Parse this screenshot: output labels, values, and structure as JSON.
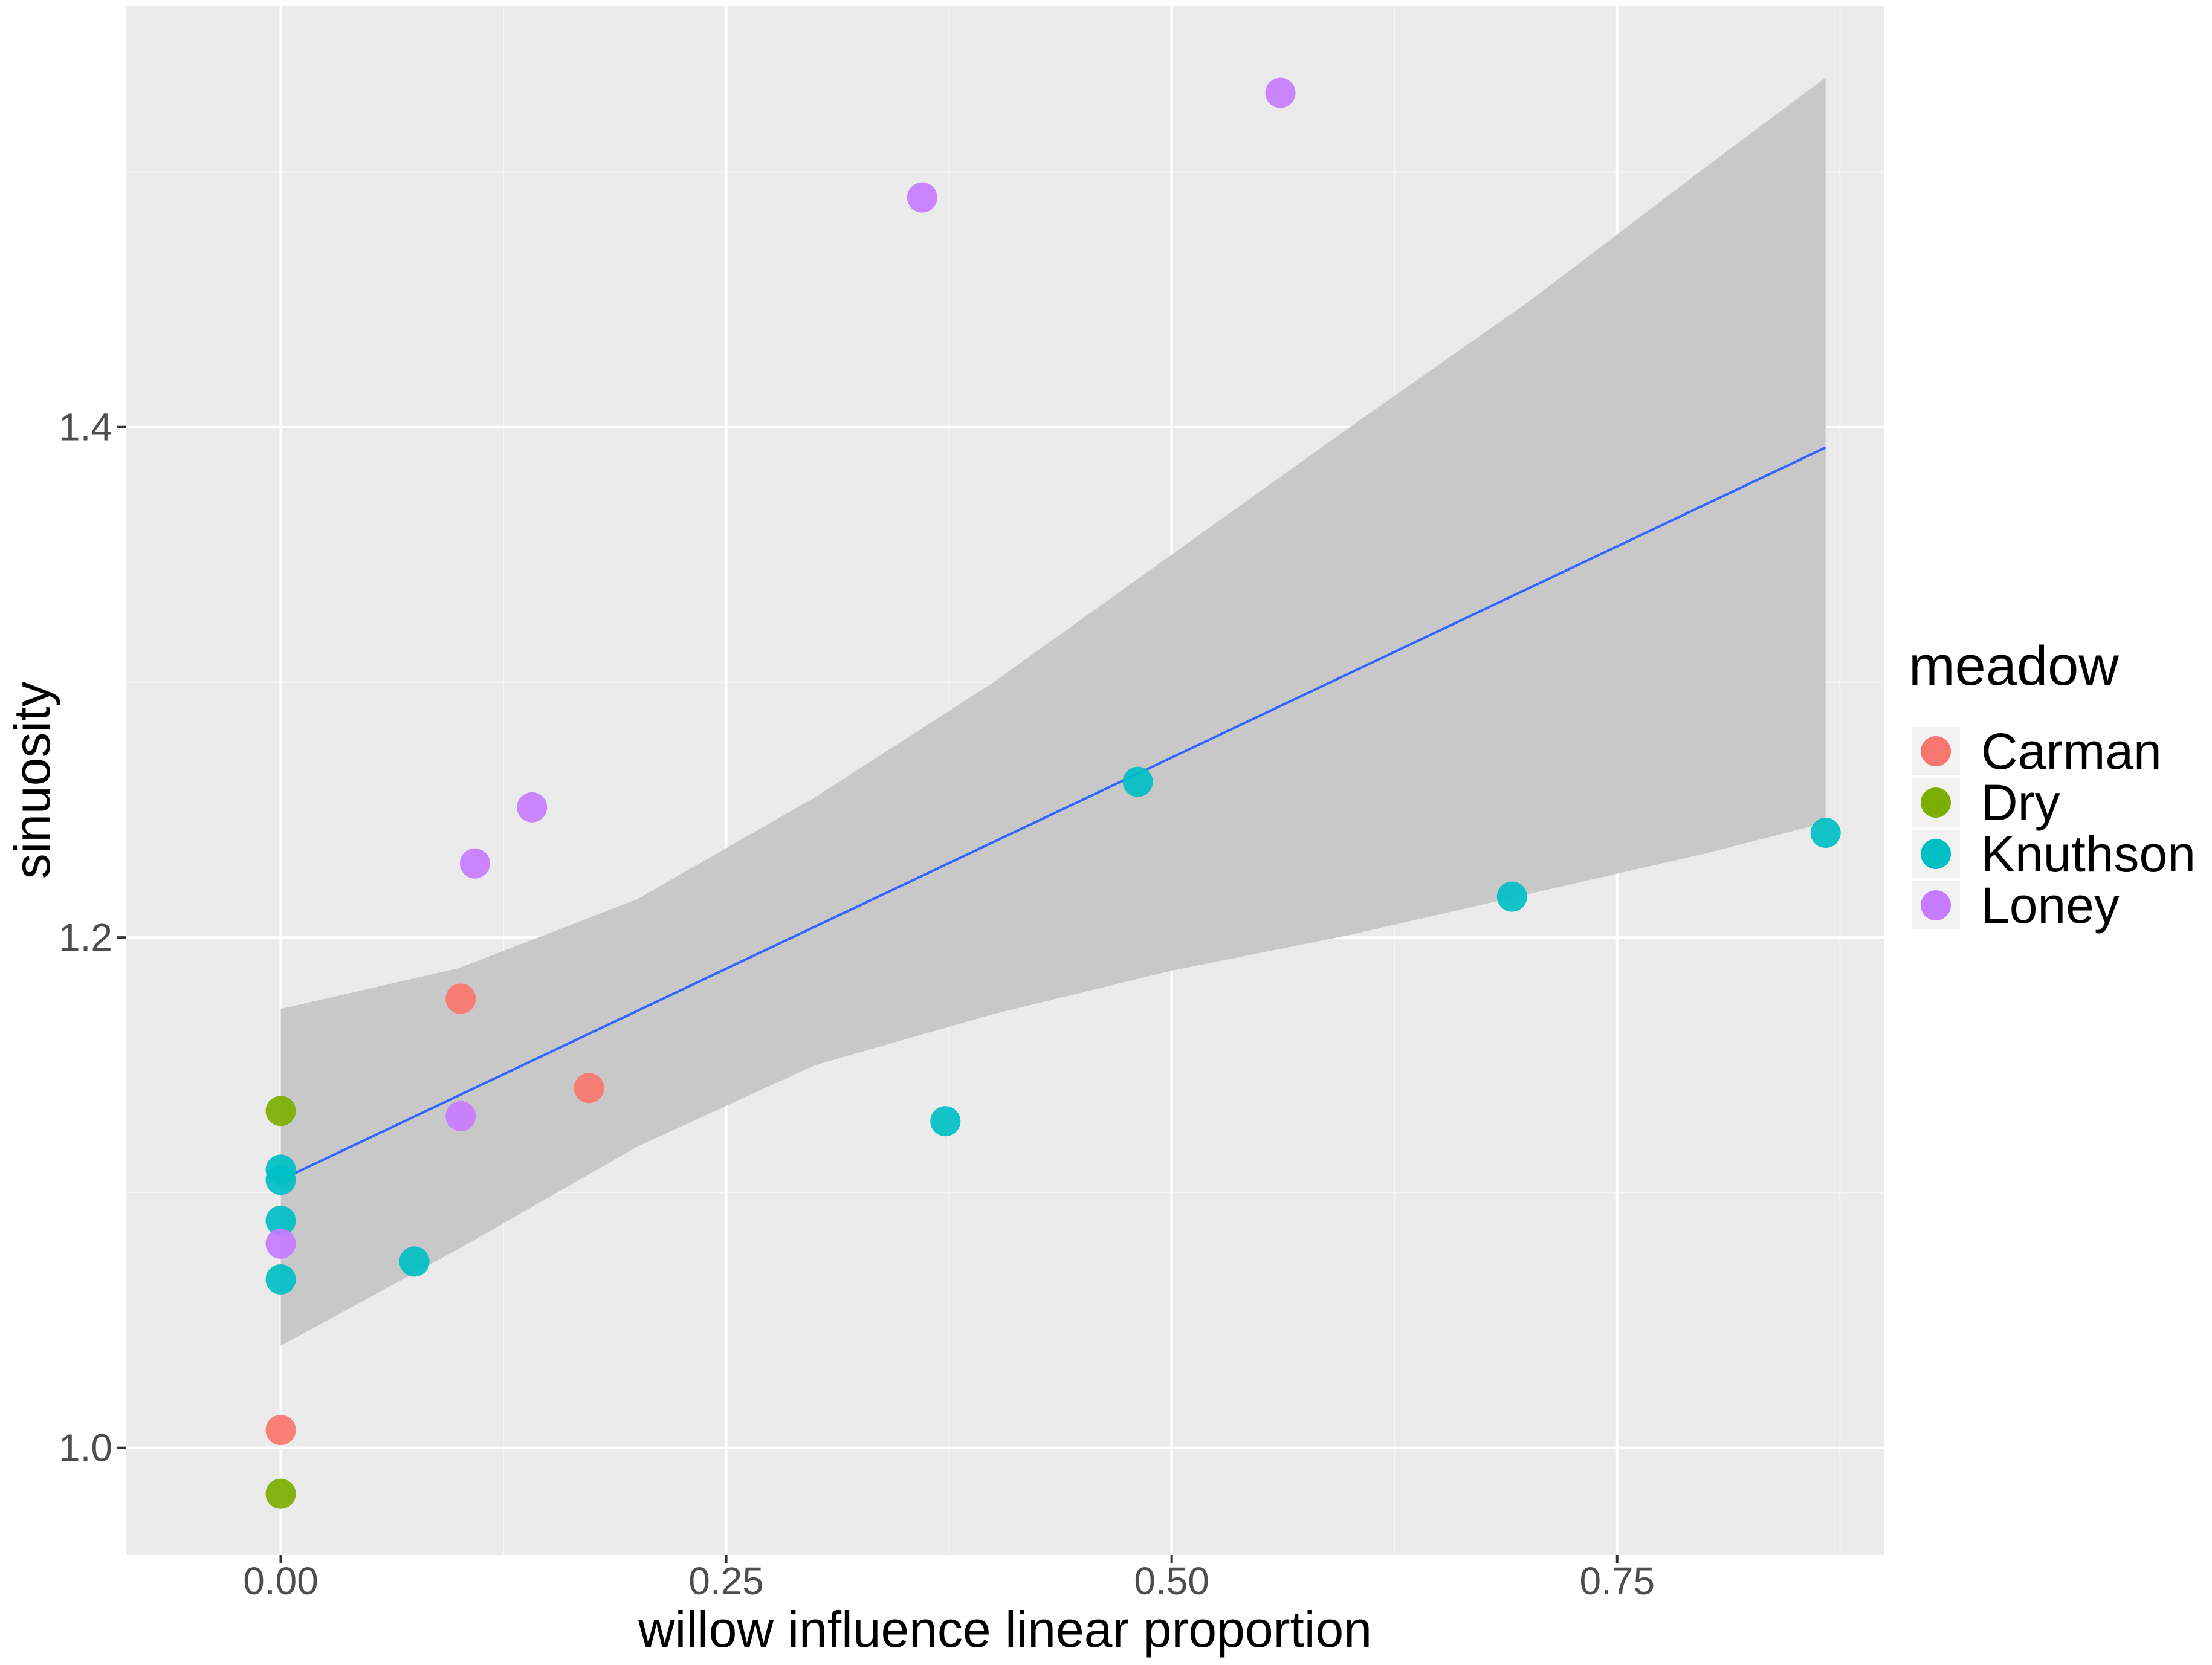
{
  "chart_data": {
    "type": "scatter",
    "title": "",
    "xlabel": "willow influence linear proportion",
    "ylabel": "sinuosity",
    "xlim": [
      -0.087,
      0.9
    ],
    "ylim": [
      0.958,
      1.565
    ],
    "x_ticks": [
      0.0,
      0.25,
      0.5,
      0.75
    ],
    "x_tick_labels": [
      "0.00",
      "0.25",
      "0.50",
      "0.75"
    ],
    "y_ticks": [
      1.0,
      1.2,
      1.4
    ],
    "y_tick_labels": [
      "1.0",
      "1.2",
      "1.4"
    ],
    "grid": true,
    "colors": {
      "panel_background": "#ebebeb",
      "grid_major": "#ffffff",
      "grid_minor": "#f5f5f5",
      "ribbon": "#c8c8c8",
      "fit_line": "#3366ff"
    },
    "legend": {
      "title": "meadow",
      "position": "right",
      "entries": [
        {
          "label": "Carman",
          "color": "#f8766d"
        },
        {
          "label": "Dry",
          "color": "#7cae00"
        },
        {
          "label": "Knuthson",
          "color": "#00bfc4"
        },
        {
          "label": "Loney",
          "color": "#c77cff"
        }
      ]
    },
    "series": [
      {
        "name": "Carman",
        "color": "#f8766d",
        "points": [
          {
            "x": 0.0,
            "y": 1.007
          },
          {
            "x": 0.101,
            "y": 1.176
          },
          {
            "x": 0.173,
            "y": 1.141
          }
        ]
      },
      {
        "name": "Dry",
        "color": "#7cae00",
        "points": [
          {
            "x": 0.0,
            "y": 0.982
          },
          {
            "x": 0.0,
            "y": 1.132
          }
        ]
      },
      {
        "name": "Knuthson",
        "color": "#00bfc4",
        "points": [
          {
            "x": 0.0,
            "y": 1.066
          },
          {
            "x": 0.0,
            "y": 1.089
          },
          {
            "x": 0.0,
            "y": 1.105
          },
          {
            "x": 0.0,
            "y": 1.109
          },
          {
            "x": 0.075,
            "y": 1.073
          },
          {
            "x": 0.373,
            "y": 1.128
          },
          {
            "x": 0.481,
            "y": 1.261
          },
          {
            "x": 0.691,
            "y": 1.216
          },
          {
            "x": 0.867,
            "y": 1.241
          }
        ]
      },
      {
        "name": "Loney",
        "color": "#c77cff",
        "points": [
          {
            "x": 0.0,
            "y": 1.08
          },
          {
            "x": 0.101,
            "y": 1.13
          },
          {
            "x": 0.109,
            "y": 1.229
          },
          {
            "x": 0.141,
            "y": 1.251
          },
          {
            "x": 0.36,
            "y": 1.49
          },
          {
            "x": 0.561,
            "y": 1.531
          }
        ]
      }
    ],
    "fit": {
      "method": "lm",
      "x": [
        0.0,
        0.867
      ],
      "y": [
        1.105,
        1.392
      ],
      "ci_upper": [
        {
          "x": 0.0,
          "y": 1.172
        },
        {
          "x": 0.1,
          "y": 1.188
        },
        {
          "x": 0.2,
          "y": 1.215
        },
        {
          "x": 0.3,
          "y": 1.255
        },
        {
          "x": 0.4,
          "y": 1.3
        },
        {
          "x": 0.5,
          "y": 1.35
        },
        {
          "x": 0.6,
          "y": 1.4
        },
        {
          "x": 0.7,
          "y": 1.449
        },
        {
          "x": 0.8,
          "y": 1.502
        },
        {
          "x": 0.867,
          "y": 1.537
        }
      ],
      "ci_lower": [
        {
          "x": 0.0,
          "y": 1.04
        },
        {
          "x": 0.1,
          "y": 1.078
        },
        {
          "x": 0.2,
          "y": 1.118
        },
        {
          "x": 0.3,
          "y": 1.15
        },
        {
          "x": 0.4,
          "y": 1.17
        },
        {
          "x": 0.5,
          "y": 1.187
        },
        {
          "x": 0.6,
          "y": 1.201
        },
        {
          "x": 0.7,
          "y": 1.217
        },
        {
          "x": 0.8,
          "y": 1.233
        },
        {
          "x": 0.867,
          "y": 1.245
        }
      ]
    }
  }
}
